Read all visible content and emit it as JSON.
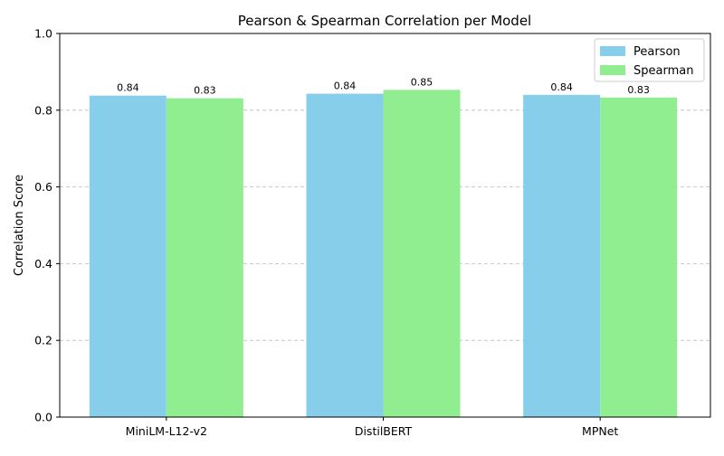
{
  "chart_data": {
    "type": "bar",
    "title": "Pearson & Spearman Correlation per Model",
    "xlabel": "",
    "ylabel": "Correlation Score",
    "categories": [
      "MiniLM-L12-v2",
      "DistilBERT",
      "MPNet"
    ],
    "series": [
      {
        "name": "Pearson",
        "color": "#87ceeb",
        "values": [
          0.838,
          0.843,
          0.84
        ],
        "labels": [
          "0.84",
          "0.84",
          "0.84"
        ]
      },
      {
        "name": "Spearman",
        "color": "#90ee90",
        "values": [
          0.831,
          0.853,
          0.833
        ],
        "labels": [
          "0.83",
          "0.85",
          "0.83"
        ]
      }
    ],
    "ylim": [
      0,
      1.0
    ],
    "yticks": [
      0.0,
      0.2,
      0.4,
      0.6,
      0.8,
      1.0
    ],
    "ytick_labels": [
      "0.0",
      "0.2",
      "0.4",
      "0.6",
      "0.8",
      "1.0"
    ],
    "grid": "y-dashed",
    "legend_position": "top-right"
  }
}
